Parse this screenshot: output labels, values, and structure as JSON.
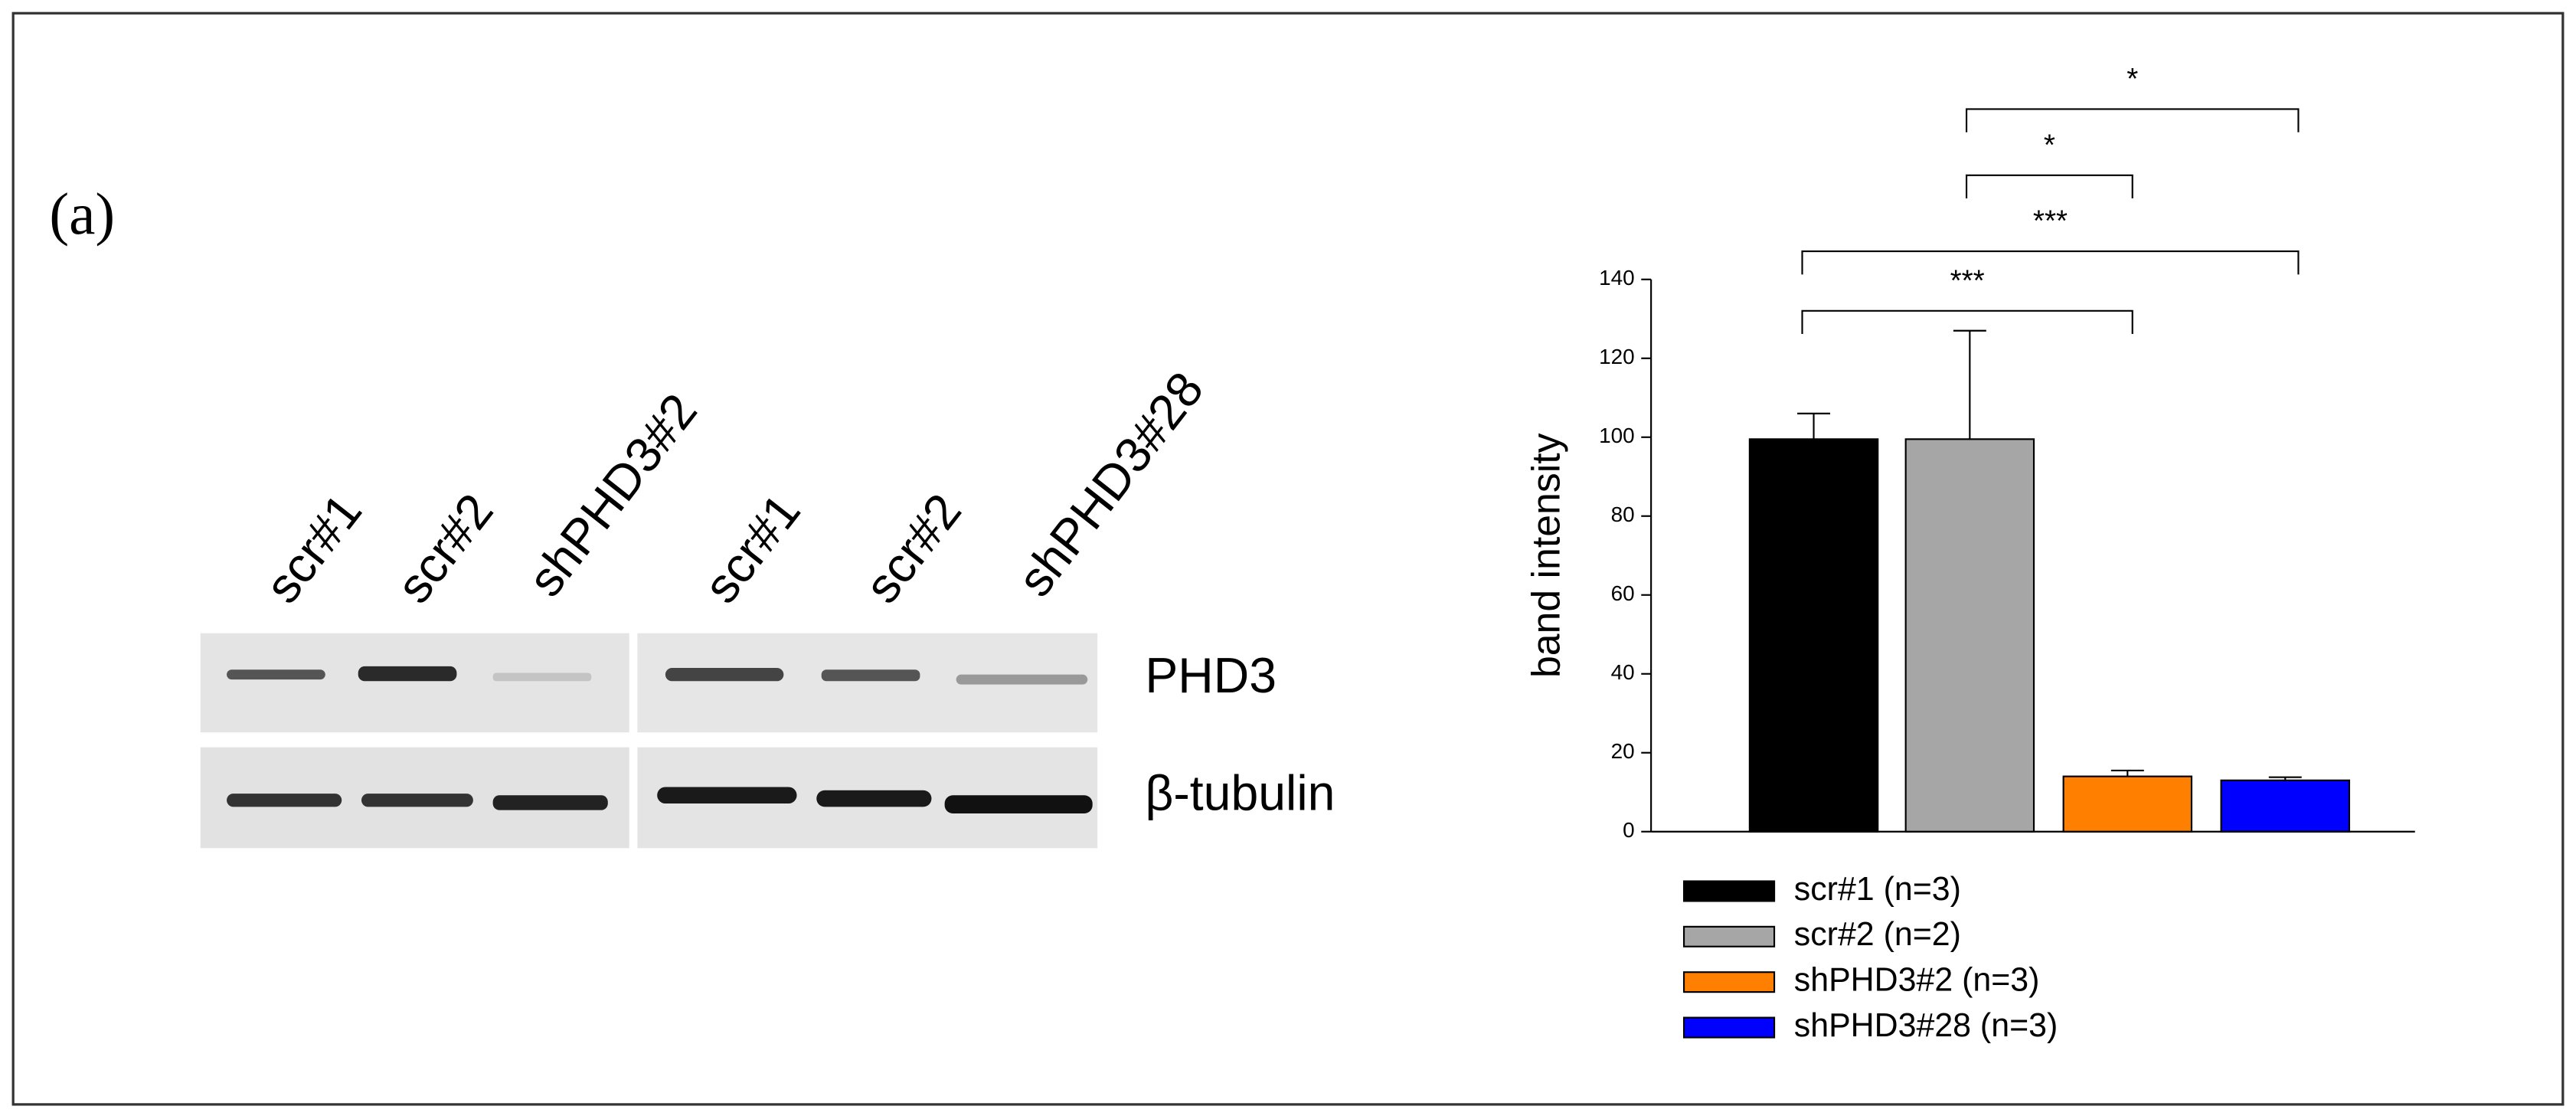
{
  "panel_label": "(a)",
  "blot": {
    "lanes": [
      "scr#1",
      "scr#2",
      "shPHD3#2",
      "scr#1",
      "scr#2",
      "shPHD3#28"
    ],
    "rows": [
      "PHD3",
      "β-tubulin"
    ]
  },
  "chart_data": {
    "type": "bar",
    "y_label": "band intensity",
    "ylim": [
      0,
      140
    ],
    "yticks": [
      0,
      20,
      40,
      60,
      80,
      100,
      120,
      140
    ],
    "series": [
      {
        "name": "scr#1 (n=3)",
        "color": "#000000",
        "values": [
          99.5
        ],
        "errors": [
          6.5
        ]
      },
      {
        "name": "scr#2 (n=2)",
        "color": "#a6a6a6",
        "values": [
          99.5
        ],
        "errors": [
          27.5
        ]
      },
      {
        "name": "shPHD3#2 (n=3)",
        "color": "#ff8000",
        "values": [
          14
        ],
        "errors": [
          1.5
        ]
      },
      {
        "name": "shPHD3#28 (n=3)",
        "color": "#0000ff",
        "values": [
          13
        ],
        "errors": [
          0.8
        ]
      }
    ],
    "annotations": [
      "***",
      "***",
      "*",
      "*"
    ]
  }
}
